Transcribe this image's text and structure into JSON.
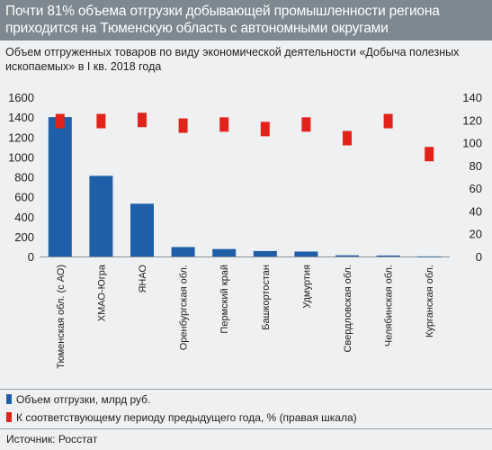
{
  "title": "Почти 81% объема отгрузки добывающей промышленности региона приходится на Тюменскую область с автономными округами",
  "subtitle": "Объем отгруженных товаров по виду экономической деятельности «Добыча полезных ископаемых» в I кв. 2018 года",
  "colors": {
    "bar": "#1f5fa8",
    "marker": "#e2231a",
    "title_bg": "#7d8890"
  },
  "legend": {
    "bars": "Объем отгрузки, млрд руб.",
    "markers": "К соответствующему периоду предыдущего года,  % (правая шкала)"
  },
  "source": "Источник: Росстат",
  "chart_data": {
    "type": "bar",
    "categories": [
      "Тюменская обл. (с АО)",
      "ХМАО-Югра",
      "ЯНАО",
      "Оренбургская обл.",
      "Пермский край",
      "Башкортостан",
      "Удмуртия",
      "Свердловская обл.",
      "Челябинская обл.",
      "Курганская обл."
    ],
    "series": [
      {
        "name": "Объем отгрузки, млрд руб.",
        "axis": "left",
        "values": [
          1400,
          810,
          530,
          95,
          75,
          55,
          50,
          12,
          10,
          1
        ]
      },
      {
        "name": "К соответствующему периоду предыдущего года,  % (правая шкала)",
        "axis": "right",
        "type": "marker",
        "values": [
          119,
          119,
          120,
          115,
          116,
          112,
          116,
          104,
          119,
          90
        ]
      }
    ],
    "y_left": {
      "lim": [
        0,
        1600
      ],
      "ticks": [
        "0",
        "200",
        "400",
        "600",
        "800",
        "1000",
        "1200",
        "1400",
        "1600"
      ]
    },
    "y_right": {
      "lim": [
        0,
        140
      ],
      "ticks": [
        "0",
        "20",
        "40",
        "60",
        "80",
        "100",
        "120",
        "140"
      ]
    },
    "grid": false,
    "legend_placement": "bottom"
  }
}
